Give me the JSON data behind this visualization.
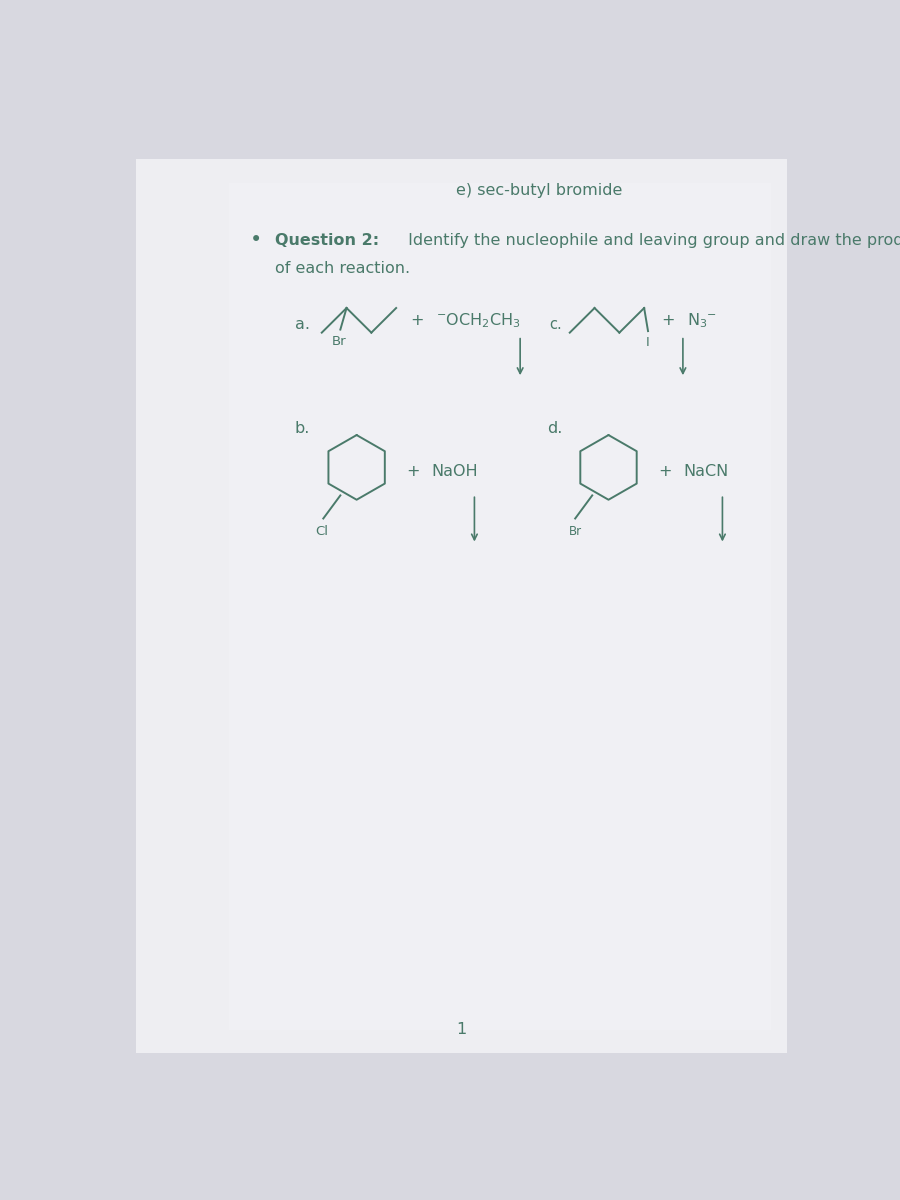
{
  "bg_color_top": "#f0f0f0",
  "bg_color_side": "#c8c8d0",
  "text_color": "#4a7a6a",
  "title_e": "e) sec-butyl bromide",
  "question_bold": "Question 2:",
  "question_rest": " Identify the nucleophile and leaving group and draw the products",
  "of_each": "of each reaction.",
  "label_a": "a.",
  "label_b": "b.",
  "label_c": "c.",
  "label_d": "d.",
  "halogen_a": "Br",
  "halogen_b": "Cl",
  "halogen_d": "Br",
  "iodine_c": "I",
  "reagent_a": "$^{-}$OCH$_{2}$CH$_{3}$",
  "reagent_b": "NaOH",
  "reagent_c": "N$_{3}$$^{-}$",
  "reagent_d": "NaCN",
  "page_num": "1"
}
